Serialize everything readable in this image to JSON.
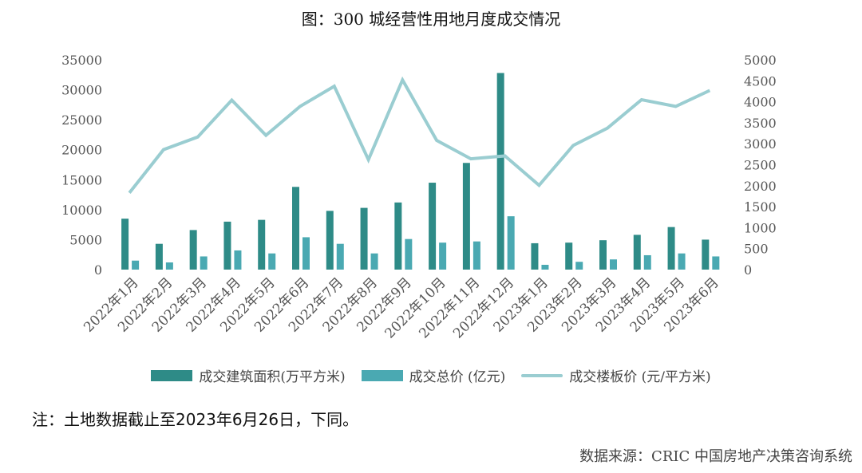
{
  "chart_data": {
    "type": "bar",
    "title": "图：300 城经营性用地月度成交情况",
    "categories": [
      "2022年1月",
      "2022年2月",
      "2022年3月",
      "2022年4月",
      "2022年5月",
      "2022年6月",
      "2022年7月",
      "2022年8月",
      "2022年9月",
      "2022年10月",
      "2022年11月",
      "2022年12月",
      "2023年1月",
      "2023年2月",
      "2023年3月",
      "2023年4月",
      "2023年5月",
      "2023年6月"
    ],
    "series": [
      {
        "name": "成交建筑面积(万平方米)",
        "type": "bar",
        "axis": "left",
        "color": "#2e8b87",
        "values": [
          8500,
          4300,
          6600,
          8000,
          8300,
          13800,
          9800,
          10300,
          11200,
          14500,
          17800,
          32800,
          4400,
          4500,
          4900,
          5800,
          7100,
          5000
        ]
      },
      {
        "name": "成交总价 (亿元)",
        "type": "bar",
        "axis": "left",
        "color": "#4aa9b2",
        "values": [
          1500,
          1200,
          2200,
          3200,
          2700,
          5400,
          4300,
          2700,
          5100,
          4500,
          4700,
          8900,
          800,
          1300,
          1700,
          2400,
          2700,
          2200
        ]
      },
      {
        "name": "成交楼板价 (元/平方米)",
        "type": "line",
        "axis": "right",
        "color": "#9acdd1",
        "values": [
          1830,
          2860,
          3160,
          4040,
          3200,
          3890,
          4370,
          2620,
          4520,
          3080,
          2640,
          2710,
          2010,
          2960,
          3370,
          4050,
          3890,
          4270
        ]
      }
    ],
    "y_left": {
      "min": 0,
      "max": 35000,
      "ticks": [
        "0",
        "5000",
        "10000",
        "15000",
        "20000",
        "25000",
        "30000",
        "35000"
      ]
    },
    "y_right": {
      "min": 0,
      "max": 5000,
      "ticks": [
        "0",
        "500",
        "1000",
        "1500",
        "2000",
        "2500",
        "3000",
        "3500",
        "4000",
        "4500",
        "5000"
      ]
    },
    "grid": false,
    "legend_position": "bottom"
  },
  "note": "注：土地数据截止至2023年6月26日，下同。",
  "source": "数据来源：CRIC 中国房地产决策咨询系统"
}
